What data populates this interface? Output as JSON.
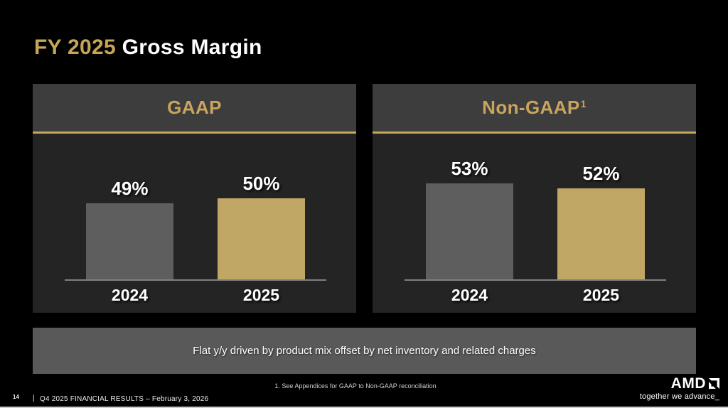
{
  "title": {
    "highlight": "FY 2025",
    "main": "Gross Margin"
  },
  "chart_data": [
    {
      "type": "bar",
      "title": "GAAP",
      "categories": [
        "2024",
        "2025"
      ],
      "values": [
        49,
        50
      ],
      "value_labels": [
        "49%",
        "50%"
      ],
      "unit": "%",
      "bar_colors": [
        "#5e5e5e",
        "#c1a766"
      ],
      "ylim": [
        33.5,
        55
      ],
      "grid": false,
      "legend": "none"
    },
    {
      "type": "bar",
      "title": "Non-GAAP",
      "title_superscript": "1",
      "categories": [
        "2024",
        "2025"
      ],
      "values": [
        53,
        52
      ],
      "value_labels": [
        "53%",
        "52%"
      ],
      "unit": "%",
      "bar_colors": [
        "#5e5e5e",
        "#c1a766"
      ],
      "ylim": [
        33.5,
        55
      ],
      "grid": false,
      "legend": "none"
    }
  ],
  "callout": {
    "text": "Flat y/y driven by product mix offset by net inventory and related charges"
  },
  "footnote": "1. See Appendices for GAAP to Non-GAAP reconciliation",
  "footer": {
    "page_number": "14",
    "divider": "|",
    "label": "Q4 2025 FINANCIAL RESULTS – February 3, 2026"
  },
  "brand": {
    "name": "AMD",
    "tagline": "together we advance_"
  },
  "colors": {
    "gold_accent": "#c6a55c",
    "bar_gray": "#5e5e5e",
    "bar_gold": "#c1a766",
    "header_bg": "#3d3d3d",
    "panel_bg": "#242424",
    "callout_bg": "#595959"
  }
}
